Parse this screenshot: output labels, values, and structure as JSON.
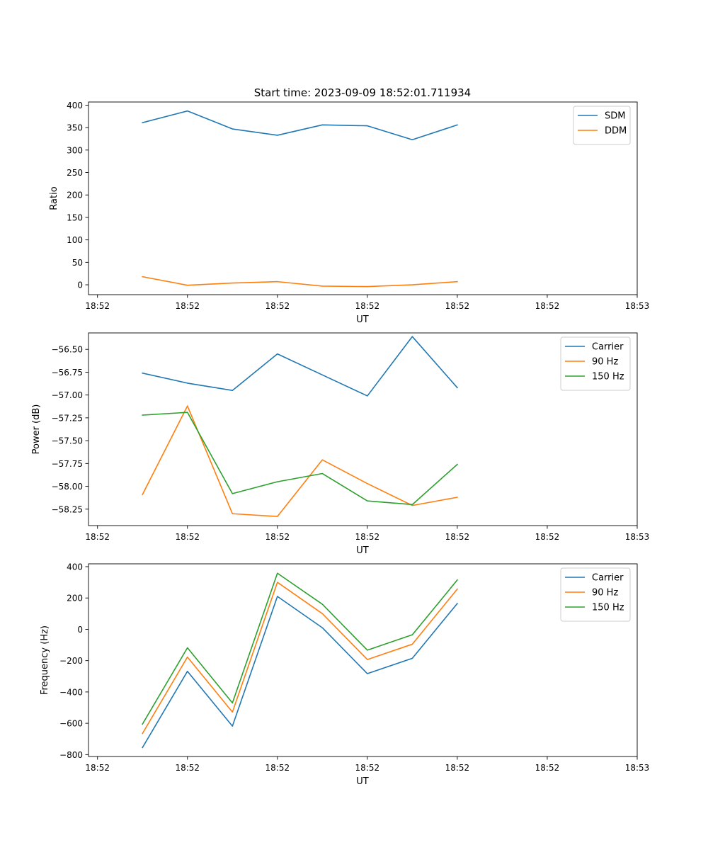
{
  "title": "Start time: 2023-09-09 18:52:01.711934",
  "chart_data": [
    {
      "type": "line",
      "xlabel": "UT",
      "ylabel": "Ratio",
      "x": [
        0.5,
        1.0,
        1.5,
        2.0,
        2.5,
        3.0,
        3.5,
        4.0
      ],
      "x_ticks": [
        0,
        1,
        2,
        3,
        4,
        5,
        6
      ],
      "x_tick_labels": [
        "18:52",
        "18:52",
        "18:52",
        "18:52",
        "18:52",
        "18:52",
        "18:53"
      ],
      "xlim": [
        -0.1,
        6.0
      ],
      "ylim": [
        -22,
        407
      ],
      "y_ticks": [
        0,
        50,
        100,
        150,
        200,
        250,
        300,
        350,
        400
      ],
      "y_tick_labels": [
        "0",
        "50",
        "100",
        "150",
        "200",
        "250",
        "300",
        "350",
        "400"
      ],
      "legend": "top-right",
      "series": [
        {
          "name": "SDM",
          "color": "#1f77b4",
          "values": [
            361,
            387,
            347,
            333,
            356,
            354,
            323,
            356
          ]
        },
        {
          "name": "DDM",
          "color": "#ff7f0e",
          "values": [
            18,
            -1,
            4,
            7,
            -3,
            -4,
            0,
            7
          ]
        }
      ]
    },
    {
      "type": "line",
      "xlabel": "UT",
      "ylabel": "Power (dB)",
      "x": [
        0.5,
        1.0,
        1.5,
        2.0,
        2.5,
        3.0,
        3.5,
        4.0
      ],
      "x_ticks": [
        0,
        1,
        2,
        3,
        4,
        5,
        6
      ],
      "x_tick_labels": [
        "18:52",
        "18:52",
        "18:52",
        "18:52",
        "18:52",
        "18:52",
        "18:53"
      ],
      "xlim": [
        -0.1,
        6.0
      ],
      "ylim": [
        -58.43,
        -56.32
      ],
      "y_ticks": [
        -58.25,
        -58.0,
        -57.75,
        -57.5,
        -57.25,
        -57.0,
        -56.75,
        -56.5
      ],
      "y_tick_labels": [
        "−58.25",
        "−58.00",
        "−57.75",
        "−57.50",
        "−57.25",
        "−57.00",
        "−56.75",
        "−56.50"
      ],
      "legend": "top-right",
      "series": [
        {
          "name": "Carrier",
          "color": "#1f77b4",
          "values": [
            -56.76,
            -56.87,
            -56.95,
            -56.55,
            -56.78,
            -57.01,
            -56.36,
            -56.92
          ]
        },
        {
          "name": "90 Hz",
          "color": "#ff7f0e",
          "values": [
            -58.09,
            -57.12,
            -58.3,
            -58.33,
            -57.71,
            -57.97,
            -58.21,
            -58.12
          ]
        },
        {
          "name": "150 Hz",
          "color": "#2ca02c",
          "values": [
            -57.22,
            -57.19,
            -58.08,
            -57.95,
            -57.86,
            -58.16,
            -58.2,
            -57.76
          ]
        }
      ]
    },
    {
      "type": "line",
      "xlabel": "UT",
      "ylabel": "Frequency (Hz)",
      "x": [
        0.5,
        1.0,
        1.5,
        2.0,
        2.5,
        3.0,
        3.5,
        4.0
      ],
      "x_ticks": [
        0,
        1,
        2,
        3,
        4,
        5,
        6
      ],
      "x_tick_labels": [
        "18:52",
        "18:52",
        "18:52",
        "18:52",
        "18:52",
        "18:52",
        "18:53"
      ],
      "xlim": [
        -0.1,
        6.0
      ],
      "ylim": [
        -812,
        418
      ],
      "y_ticks": [
        -800,
        -600,
        -400,
        -200,
        0,
        200,
        400
      ],
      "y_tick_labels": [
        "−800",
        "−600",
        "−400",
        "−200",
        "0",
        "200",
        "400"
      ],
      "legend": "top-right",
      "series": [
        {
          "name": "Carrier",
          "color": "#1f77b4",
          "values": [
            -755,
            -268,
            -618,
            210,
            10,
            -283,
            -185,
            165
          ]
        },
        {
          "name": "90 Hz",
          "color": "#ff7f0e",
          "values": [
            -665,
            -177,
            -528,
            300,
            100,
            -193,
            -95,
            257
          ]
        },
        {
          "name": "150 Hz",
          "color": "#2ca02c",
          "values": [
            -605,
            -118,
            -470,
            358,
            160,
            -133,
            -35,
            315
          ]
        }
      ]
    }
  ]
}
